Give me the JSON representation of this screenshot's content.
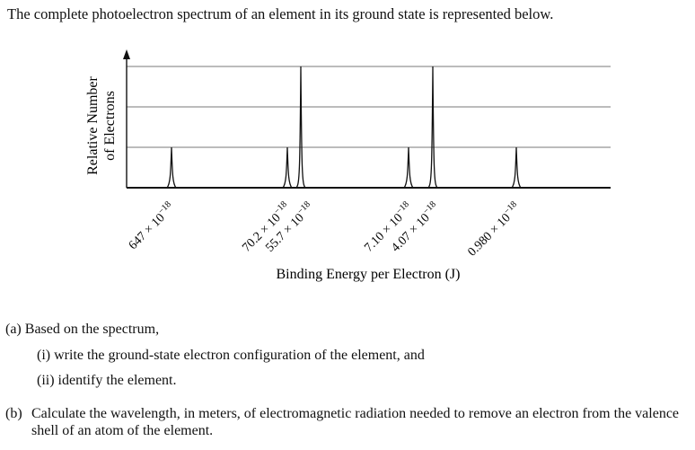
{
  "intro": "The complete photoelectron spectrum of an element in its ground state is represented below.",
  "chart_data": {
    "type": "line",
    "subtype": "photoelectron-spectrum",
    "title": "",
    "xlabel": "Binding Energy per Electron (J)",
    "ylabel_lines": [
      "Relative Number",
      "of Electrons"
    ],
    "x_axis_reversed": true,
    "y_gridlines": [
      1,
      2,
      3
    ],
    "ylim": [
      0,
      3
    ],
    "grid": "horizontal",
    "peaks": [
      {
        "label_line1": "647 × 10",
        "exponent": "−18",
        "relative_number": 1
      },
      {
        "label_line1": "70.2 × 10",
        "exponent": "−18",
        "relative_number": 1
      },
      {
        "label_line1": "55.7 × 10",
        "exponent": "−18",
        "relative_number": 3
      },
      {
        "label_line1": "7.10 × 10",
        "exponent": "−18",
        "relative_number": 1
      },
      {
        "label_line1": "4.07 × 10",
        "exponent": "−18",
        "relative_number": 3
      },
      {
        "label_line1": "0.980 × 10",
        "exponent": "−18",
        "relative_number": 1
      }
    ],
    "colors": {
      "axis": "#111111",
      "grid": "#7a7a7a",
      "peak": "#111111"
    }
  },
  "questions": {
    "a_label": "(a)",
    "a_text": "Based on the spectrum,",
    "a_i_label": "(i)",
    "a_i_text": "write the ground-state electron configuration of the element, and",
    "a_ii_label": "(ii)",
    "a_ii_text": "identify the element.",
    "b_label": "(b)",
    "b_text": "Calculate the wavelength, in meters, of electromagnetic radiation needed to remove an electron from the valence shell of an atom of the element."
  }
}
